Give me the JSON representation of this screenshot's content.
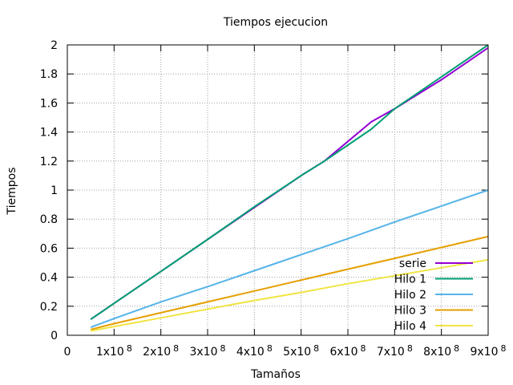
{
  "chart_data": {
    "type": "line",
    "title": "Tiempos ejecucion",
    "xlabel": "Tamaños",
    "ylabel": "Tiempos",
    "xlim": [
      0,
      900000000
    ],
    "ylim": [
      0,
      2
    ],
    "grid": true,
    "legend_position": "bottom-right",
    "x_ticks": [
      {
        "value": 0,
        "label": "0"
      },
      {
        "value": 100000000,
        "label": "1x10",
        "exp": "8"
      },
      {
        "value": 200000000,
        "label": "2x10",
        "exp": "8"
      },
      {
        "value": 300000000,
        "label": "3x10",
        "exp": "8"
      },
      {
        "value": 400000000,
        "label": "4x10",
        "exp": "8"
      },
      {
        "value": 500000000,
        "label": "5x10",
        "exp": "8"
      },
      {
        "value": 600000000,
        "label": "6x10",
        "exp": "8"
      },
      {
        "value": 700000000,
        "label": "7x10",
        "exp": "8"
      },
      {
        "value": 800000000,
        "label": "8x10",
        "exp": "8"
      },
      {
        "value": 900000000,
        "label": "9x10",
        "exp": "8"
      }
    ],
    "y_ticks": [
      {
        "value": 0,
        "label": "0"
      },
      {
        "value": 0.2,
        "label": "0.2"
      },
      {
        "value": 0.4,
        "label": "0.4"
      },
      {
        "value": 0.6,
        "label": "0.6"
      },
      {
        "value": 0.8,
        "label": "0.8"
      },
      {
        "value": 1,
        "label": "1"
      },
      {
        "value": 1.2,
        "label": "1.2"
      },
      {
        "value": 1.4,
        "label": "1.4"
      },
      {
        "value": 1.6,
        "label": "1.6"
      },
      {
        "value": 1.8,
        "label": "1.8"
      },
      {
        "value": 2,
        "label": "2"
      }
    ],
    "series": [
      {
        "name": "serie",
        "color": "#9400d3",
        "x": [
          50000000,
          100000000,
          200000000,
          300000000,
          400000000,
          500000000,
          550000000,
          650000000,
          700000000,
          800000000,
          900000000
        ],
        "y": [
          0.11,
          0.22,
          0.44,
          0.66,
          0.88,
          1.1,
          1.2,
          1.47,
          1.56,
          1.76,
          1.98
        ]
      },
      {
        "name": "Hilo 1",
        "color": "#009e73",
        "x": [
          50000000,
          100000000,
          200000000,
          300000000,
          400000000,
          500000000,
          550000000,
          650000000,
          700000000,
          800000000,
          900000000
        ],
        "y": [
          0.11,
          0.22,
          0.44,
          0.66,
          0.885,
          1.1,
          1.2,
          1.42,
          1.56,
          1.78,
          2.0
        ]
      },
      {
        "name": "Hilo 2",
        "color": "#56b4e9",
        "x": [
          50000000,
          100000000,
          200000000,
          300000000,
          400000000,
          500000000,
          600000000,
          700000000,
          800000000,
          900000000
        ],
        "y": [
          0.055,
          0.115,
          0.23,
          0.335,
          0.445,
          0.555,
          0.665,
          0.78,
          0.89,
          1.0
        ]
      },
      {
        "name": "Hilo 3",
        "color": "#e69f00",
        "x": [
          50000000,
          100000000,
          200000000,
          300000000,
          400000000,
          500000000,
          600000000,
          700000000,
          800000000,
          900000000
        ],
        "y": [
          0.04,
          0.08,
          0.155,
          0.23,
          0.305,
          0.38,
          0.455,
          0.53,
          0.605,
          0.68
        ]
      },
      {
        "name": "Hilo 4",
        "color": "#f0e442",
        "x": [
          50000000,
          100000000,
          200000000,
          300000000,
          400000000,
          500000000,
          600000000,
          700000000,
          800000000,
          900000000
        ],
        "y": [
          0.03,
          0.06,
          0.12,
          0.18,
          0.24,
          0.295,
          0.355,
          0.41,
          0.465,
          0.52
        ]
      }
    ]
  }
}
